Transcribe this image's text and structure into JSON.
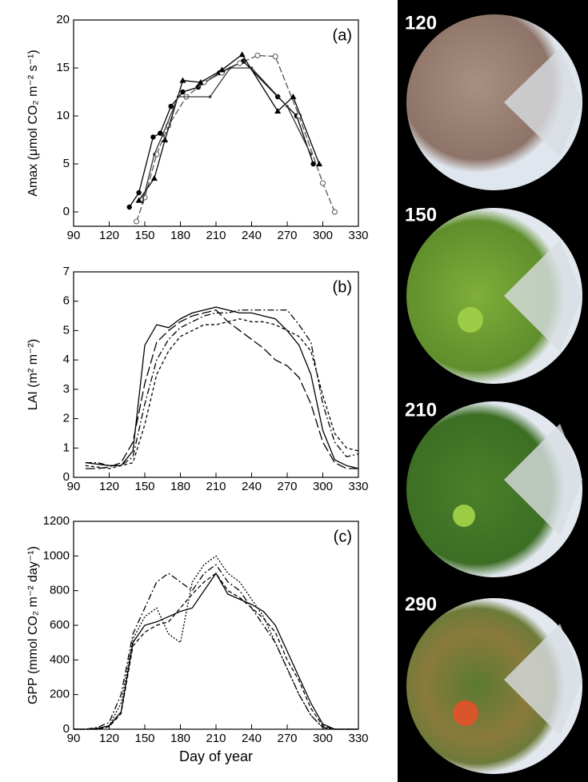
{
  "chart_data": [
    {
      "type": "line",
      "panel_label": "(a)",
      "ylabel": "Amax (μmol CO₂ m⁻² s⁻¹)",
      "xlim": [
        90,
        330
      ],
      "xticks": [
        90,
        120,
        150,
        180,
        210,
        240,
        270,
        300,
        330
      ],
      "ylim": [
        -1.5,
        20
      ],
      "yticks": [
        0,
        5,
        10,
        15,
        20
      ],
      "series": [
        {
          "color": "#000000",
          "dash": "none",
          "marker": "filled-circle",
          "x": [
            137,
            145,
            157,
            163,
            172,
            182,
            195,
            213,
            233,
            262,
            278,
            292
          ],
          "values": [
            0.5,
            2,
            7.8,
            8.2,
            11,
            12.5,
            13,
            14.5,
            15.7,
            12,
            10,
            5
          ]
        },
        {
          "color": "#555555",
          "dash": "8,3",
          "marker": "open-circle",
          "x": [
            143,
            150,
            160,
            170,
            185,
            200,
            215,
            230,
            245,
            260,
            280,
            300,
            310
          ],
          "values": [
            -1,
            1.5,
            6,
            9,
            12,
            13.5,
            14.5,
            15.5,
            16.3,
            16.2,
            10,
            3,
            0
          ]
        },
        {
          "color": "#000000",
          "dash": "none",
          "marker": "triangle",
          "x": [
            145,
            158,
            167,
            182,
            197,
            215,
            232,
            262,
            275,
            297
          ],
          "values": [
            1.2,
            3.5,
            7.5,
            13.7,
            13.5,
            14.8,
            16.4,
            10.5,
            12,
            5
          ]
        },
        {
          "color": "#333333",
          "dash": "none",
          "marker": "dot",
          "x": [
            148,
            158,
            165,
            178,
            205,
            222,
            240,
            270,
            290
          ],
          "values": [
            1,
            6,
            8,
            12,
            12,
            15,
            15,
            11,
            6
          ]
        }
      ]
    },
    {
      "type": "line",
      "panel_label": "(b)",
      "ylabel": "LAI (m² m⁻²)",
      "xlim": [
        90,
        330
      ],
      "xticks": [
        90,
        120,
        150,
        180,
        210,
        240,
        270,
        300,
        330
      ],
      "ylim": [
        0,
        7
      ],
      "yticks": [
        0,
        1,
        2,
        3,
        4,
        5,
        6,
        7
      ],
      "x": [
        100,
        110,
        120,
        130,
        140,
        150,
        160,
        170,
        180,
        190,
        200,
        210,
        220,
        230,
        240,
        250,
        260,
        270,
        280,
        290,
        300,
        310,
        320,
        330
      ],
      "series": [
        {
          "color": "#000000",
          "dash": "none",
          "values": [
            0.5,
            0.45,
            0.4,
            0.4,
            0.9,
            4.5,
            5.2,
            5.1,
            5.4,
            5.6,
            5.7,
            5.8,
            5.7,
            5.6,
            5.6,
            5.5,
            5.4,
            5.0,
            4.5,
            3.5,
            1.6,
            0.6,
            0.4,
            0.3
          ]
        },
        {
          "color": "#000000",
          "dash": "12,4",
          "values": [
            0.3,
            0.3,
            0.35,
            0.5,
            1.2,
            3.2,
            4.6,
            5.0,
            5.3,
            5.5,
            5.6,
            5.7,
            5.3,
            5.0,
            4.7,
            4.4,
            4.0,
            3.8,
            3.4,
            2.5,
            1.2,
            0.5,
            0.3,
            0.3
          ]
        },
        {
          "color": "#000000",
          "dash": "8,3,2,3",
          "values": [
            0.5,
            0.5,
            0.4,
            0.4,
            0.7,
            2.5,
            4.0,
            4.7,
            5.1,
            5.3,
            5.5,
            5.6,
            5.6,
            5.7,
            5.7,
            5.7,
            5.7,
            5.7,
            5.2,
            4.6,
            2.5,
            1.2,
            0.7,
            0.8
          ]
        },
        {
          "color": "#000000",
          "dash": "4,3",
          "values": [
            0.4,
            0.35,
            0.3,
            0.4,
            0.5,
            1.8,
            3.5,
            4.3,
            4.8,
            5.0,
            5.2,
            5.2,
            5.3,
            5.4,
            5.3,
            5.3,
            5.2,
            5.0,
            4.8,
            4.3,
            2.8,
            1.5,
            1.0,
            0.9
          ]
        }
      ]
    },
    {
      "type": "line",
      "panel_label": "(c)",
      "ylabel": "GPP (mmol CO₂ m⁻² day⁻¹)",
      "xlabel": "Day of year",
      "xlim": [
        90,
        330
      ],
      "xticks": [
        90,
        120,
        150,
        180,
        210,
        240,
        270,
        300,
        330
      ],
      "ylim": [
        0,
        1200
      ],
      "yticks": [
        0,
        200,
        400,
        600,
        800,
        1000,
        1200
      ],
      "x": [
        90,
        100,
        110,
        120,
        130,
        140,
        150,
        160,
        170,
        180,
        190,
        200,
        210,
        220,
        230,
        240,
        250,
        260,
        270,
        280,
        290,
        300,
        310,
        320,
        330
      ],
      "series": [
        {
          "color": "#000000",
          "dash": "none",
          "values": [
            0,
            0,
            5,
            20,
            100,
            500,
            600,
            620,
            650,
            680,
            700,
            800,
            900,
            780,
            750,
            720,
            680,
            600,
            450,
            300,
            150,
            30,
            0,
            0,
            0
          ]
        },
        {
          "color": "#000000",
          "dash": "8,3,2,3",
          "values": [
            0,
            0,
            10,
            40,
            200,
            550,
            700,
            850,
            900,
            850,
            800,
            900,
            950,
            850,
            800,
            700,
            600,
            500,
            350,
            200,
            80,
            10,
            0,
            0,
            0
          ]
        },
        {
          "color": "#000000",
          "dash": "2,2",
          "values": [
            0,
            0,
            0,
            20,
            150,
            520,
            650,
            700,
            550,
            500,
            850,
            950,
            1000,
            900,
            850,
            750,
            650,
            500,
            350,
            200,
            80,
            10,
            0,
            0,
            0
          ]
        },
        {
          "color": "#000000",
          "dash": "5,3",
          "values": [
            0,
            0,
            0,
            15,
            90,
            480,
            560,
            600,
            620,
            700,
            780,
            850,
            900,
            800,
            760,
            700,
            640,
            560,
            400,
            280,
            120,
            20,
            0,
            0,
            0
          ]
        }
      ]
    }
  ],
  "photos": [
    {
      "label": "120"
    },
    {
      "label": "150"
    },
    {
      "label": "210"
    },
    {
      "label": "290"
    }
  ]
}
